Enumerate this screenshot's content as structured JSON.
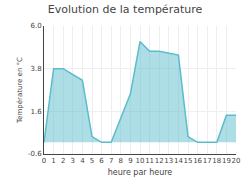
{
  "chart_data": {
    "type": "area",
    "title": "Evolution de la température",
    "xlabel": "heure par heure",
    "ylabel": "Température en °C",
    "x": [
      0,
      1,
      2,
      3,
      4,
      5,
      6,
      7,
      8,
      9,
      10,
      11,
      12,
      13,
      14,
      15,
      16,
      17,
      18,
      19,
      20
    ],
    "values": [
      0.0,
      3.8,
      3.8,
      3.5,
      3.2,
      0.3,
      0.0,
      0.0,
      1.2,
      2.5,
      5.2,
      4.7,
      4.7,
      4.6,
      4.5,
      0.3,
      0.0,
      0.0,
      0.0,
      1.4,
      1.4
    ],
    "color": "#5bbccc",
    "xlim": [
      0,
      20
    ],
    "xticks": [
      0,
      1,
      2,
      3,
      4,
      5,
      6,
      7,
      8,
      9,
      10,
      11,
      12,
      13,
      14,
      15,
      16,
      17,
      18,
      19,
      20
    ],
    "ylim": [
      -0.6,
      6.0
    ],
    "yticks": [
      -0.6,
      1.6,
      3.8,
      {
        "value": 6.0,
        "label": "6.0"
      }
    ],
    "grid": true
  }
}
